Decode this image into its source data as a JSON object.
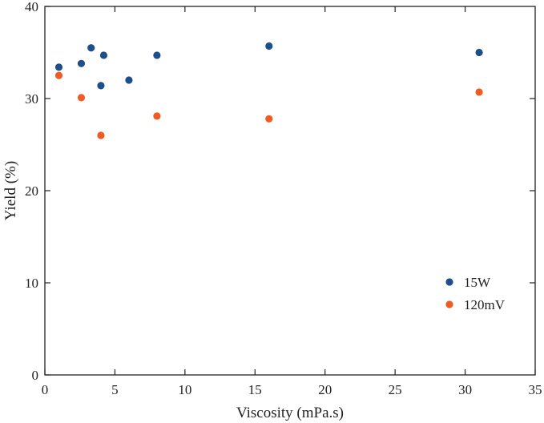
{
  "chart_data": {
    "type": "scatter",
    "title": "",
    "xlabel": "Viscosity (mPa.s)",
    "ylabel": "Yield (%)",
    "xlim": [
      0,
      35
    ],
    "ylim": [
      0,
      40
    ],
    "xticks": [
      0,
      5,
      10,
      15,
      20,
      25,
      30,
      35
    ],
    "yticks": [
      0,
      10,
      20,
      30,
      40
    ],
    "grid": false,
    "legend_position": "bottom-right",
    "series": [
      {
        "name": "15W",
        "color": "#1f4e8c",
        "points": [
          {
            "x": 1,
            "y": 33.4
          },
          {
            "x": 2.6,
            "y": 33.8
          },
          {
            "x": 3.3,
            "y": 35.5
          },
          {
            "x": 4.2,
            "y": 34.7
          },
          {
            "x": 4.0,
            "y": 31.4
          },
          {
            "x": 6.0,
            "y": 32.0
          },
          {
            "x": 8.0,
            "y": 34.7
          },
          {
            "x": 16.0,
            "y": 35.7
          },
          {
            "x": 31.0,
            "y": 35.0
          }
        ]
      },
      {
        "name": "120mV",
        "color": "#f05a24",
        "points": [
          {
            "x": 1,
            "y": 32.5
          },
          {
            "x": 2.6,
            "y": 30.1
          },
          {
            "x": 4.0,
            "y": 26.0
          },
          {
            "x": 8.0,
            "y": 28.1
          },
          {
            "x": 16.0,
            "y": 27.8
          },
          {
            "x": 31.0,
            "y": 30.7
          }
        ]
      }
    ]
  }
}
